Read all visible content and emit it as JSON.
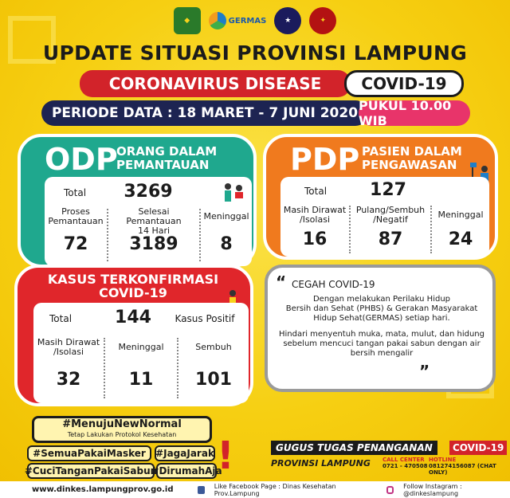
{
  "logos": {
    "germas_text": "GERMAS"
  },
  "header": {
    "title": "UPDATE SITUASI PROVINSI LAMPUNG",
    "disease": "CORONAVIRUS DISEASE",
    "covid": "COVID-19",
    "periode": "PERIODE DATA : 18 MARET - 7 JUNI 2020",
    "pukul": "PUKUL 10.00 WIB"
  },
  "odp": {
    "abbr": "ODP",
    "full_1": "ORANG DALAM",
    "full_2": "PEMANTAUAN",
    "total_label": "Total",
    "total_value": "3269",
    "col1_label_1": "Proses",
    "col1_label_2": "Pemantauan",
    "col1_value": "72",
    "col2_label_1": "Selesai Pemantauan",
    "col2_label_2": "14 Hari",
    "col2_value": "3189",
    "col3_label": "Meninggal",
    "col3_value": "8"
  },
  "pdp": {
    "abbr": "PDP",
    "full_1": "PASIEN DALAM",
    "full_2": "PENGAWASAN",
    "total_label": "Total",
    "total_value": "127",
    "col1_label_1": "Masih Dirawat",
    "col1_label_2": "/Isolasi",
    "col1_value": "16",
    "col2_label_1": "Pulang/Sembuh",
    "col2_label_2": "/Negatif",
    "col2_value": "87",
    "col3_label": "Meninggal",
    "col3_value": "24"
  },
  "kasus": {
    "title_1": "KASUS TERKONFIRMASI",
    "title_2": "COVID-19",
    "total_label": "Total",
    "total_value": "144",
    "total_suffix": "Kasus Positif",
    "col1_label_1": "Masih Dirawat",
    "col1_label_2": "/Isolasi",
    "col1_value": "32",
    "col2_label": "Meninggal",
    "col2_value": "11",
    "col3_label": "Sembuh",
    "col3_value": "101"
  },
  "cegah": {
    "title": "CEGAH COVID-19",
    "p1_1": "Dengan melakukan Perilaku Hidup",
    "p1_2": "Bersih dan Sehat (PHBS) & Gerakan Masyarakat",
    "p1_3": "Hidup Sehat(GERMAS) setiap hari.",
    "p2_1": "Hindari menyentuh muka, mata, mulut, dan hidung",
    "p2_2": "sebelum mencuci tangan pakai sabun dengan air",
    "p2_3": "bersih mengalir"
  },
  "hashtags": {
    "main": "#MenujuNewNormal",
    "sub": "Tetap Lakukan Protokol Kesehatan",
    "h1": "#SemuaPakaiMasker",
    "h2": "#JagaJarak",
    "h3": "#CuciTanganPakaiSabun",
    "h4": "#DirumahAja"
  },
  "gugus": {
    "line1": "GUGUS TUGAS PENANGANAN",
    "covid": "COVID-19",
    "line2": "PROVINSI LAMPUNG",
    "call_center_label": "CALL CENTER",
    "call_center_value": "0721 - 470508",
    "hotline_label": "HOTLINE",
    "hotline_value": "081274156087 (CHAT ONLY)"
  },
  "footer": {
    "url": "www.dinkes.lampungprov.go.id",
    "fb": "Like Facebook Page : Dinas Kesehatan Prov.Lampung",
    "ig": "Follow Instagram : @dinkeslampung"
  },
  "colors": {
    "background": "#f7d21c",
    "odp": "#1fa88e",
    "pdp": "#f07a1e",
    "kasus": "#e0262b",
    "navy": "#1d2452",
    "pink": "#e8346a"
  }
}
